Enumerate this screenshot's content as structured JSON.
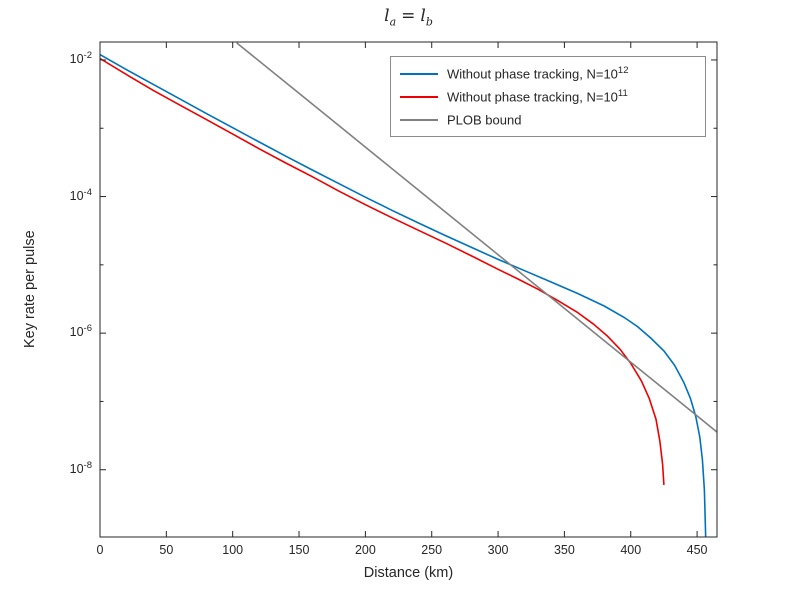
{
  "page": {
    "background": "#ffffff"
  },
  "title": {
    "lhs_base": "l",
    "lhs_sub": "a",
    "op": "=",
    "rhs_base": "l",
    "rhs_sub": "b"
  },
  "axes": {
    "xlabel": "Distance (km)",
    "ylabel": "Key rate per pulse",
    "x_ticks": [
      0,
      50,
      100,
      150,
      200,
      250,
      300,
      350,
      400,
      450
    ],
    "y_major_ticks": [
      {
        "base": "10",
        "exp": "-2"
      },
      {
        "base": "10",
        "exp": "-4"
      },
      {
        "base": "10",
        "exp": "-6"
      },
      {
        "base": "10",
        "exp": "-8"
      }
    ],
    "y_minor_exps": [
      -3,
      -5,
      -7
    ],
    "frame_color": "#262626",
    "text_color": "#262626"
  },
  "legend": {
    "entries": [
      {
        "prefix": "Without phase tracking, N=10",
        "sup": "12",
        "color": "#0072BD"
      },
      {
        "prefix": "Without phase tracking, N=10",
        "sup": "11",
        "color": "#EE0000"
      },
      {
        "prefix": "PLOB bound",
        "sup": "",
        "color": "#808080"
      }
    ]
  },
  "chart_data": {
    "type": "line",
    "title": "l_a = l_b",
    "xlabel": "Distance (km)",
    "ylabel": "Key rate per pulse",
    "x_range": [
      0,
      465
    ],
    "y_scale": "log",
    "y_range": [
      1e-09,
      0.018
    ],
    "y_tick_exponents": [
      -2,
      -4,
      -6,
      -8
    ],
    "grid": false,
    "legend_position": "top-right",
    "series": [
      {
        "name": "Without phase tracking, N=10^12",
        "color": "#0072BD",
        "points": [
          [
            0,
            0.012
          ],
          [
            20,
            0.0072
          ],
          [
            40,
            0.0044
          ],
          [
            60,
            0.0027
          ],
          [
            80,
            0.00165
          ],
          [
            100,
            0.00102
          ],
          [
            120,
            0.00063
          ],
          [
            140,
            0.00039
          ],
          [
            160,
            0.000245
          ],
          [
            180,
            0.000155
          ],
          [
            200,
            9.8e-05
          ],
          [
            220,
            6.3e-05
          ],
          [
            240,
            4.1e-05
          ],
          [
            260,
            2.7e-05
          ],
          [
            280,
            1.8e-05
          ],
          [
            300,
            1.2e-05
          ],
          [
            320,
            8.2e-06
          ],
          [
            340,
            5.6e-06
          ],
          [
            360,
            3.8e-06
          ],
          [
            380,
            2.5e-06
          ],
          [
            395,
            1.7e-06
          ],
          [
            405,
            1.25e-06
          ],
          [
            415,
            8.5e-07
          ],
          [
            425,
            5.5e-07
          ],
          [
            433,
            3.4e-07
          ],
          [
            440,
            1.9e-07
          ],
          [
            445,
            1.1e-07
          ],
          [
            449,
            6e-08
          ],
          [
            452,
            3e-08
          ],
          [
            454,
            1.4e-08
          ],
          [
            455.5,
            5e-09
          ],
          [
            456.5,
            1e-09
          ]
        ]
      },
      {
        "name": "Without phase tracking, N=10^11",
        "color": "#EE0000",
        "points": [
          [
            0,
            0.0105
          ],
          [
            20,
            0.0061
          ],
          [
            40,
            0.0036
          ],
          [
            60,
            0.0022
          ],
          [
            80,
            0.00135
          ],
          [
            100,
            0.00082
          ],
          [
            120,
            0.0005
          ],
          [
            140,
            0.00031
          ],
          [
            160,
            0.000195
          ],
          [
            180,
            0.00012
          ],
          [
            200,
            7.6e-05
          ],
          [
            220,
            4.9e-05
          ],
          [
            240,
            3.2e-05
          ],
          [
            260,
            2.1e-05
          ],
          [
            280,
            1.35e-05
          ],
          [
            300,
            8.6e-06
          ],
          [
            315,
            6.2e-06
          ],
          [
            330,
            4.4e-06
          ],
          [
            345,
            3e-06
          ],
          [
            360,
            2e-06
          ],
          [
            372,
            1.35e-06
          ],
          [
            382,
            9.2e-07
          ],
          [
            392,
            5.8e-07
          ],
          [
            400,
            3.6e-07
          ],
          [
            408,
            2e-07
          ],
          [
            414,
            1.1e-07
          ],
          [
            419,
            5.5e-08
          ],
          [
            422,
            2.6e-08
          ],
          [
            424,
            1.2e-08
          ],
          [
            425,
            6e-09
          ]
        ]
      },
      {
        "name": "PLOB bound",
        "color": "#808080",
        "points": [
          [
            103,
            0.0178
          ],
          [
            150,
            0.00326
          ],
          [
            200,
            0.000529
          ],
          [
            250,
            8.64e-05
          ],
          [
            300,
            1.41e-05
          ],
          [
            350,
            2.3e-06
          ],
          [
            400,
            3.76e-07
          ],
          [
            450,
            6.14e-08
          ],
          [
            466,
            3.44e-08
          ]
        ]
      }
    ]
  }
}
